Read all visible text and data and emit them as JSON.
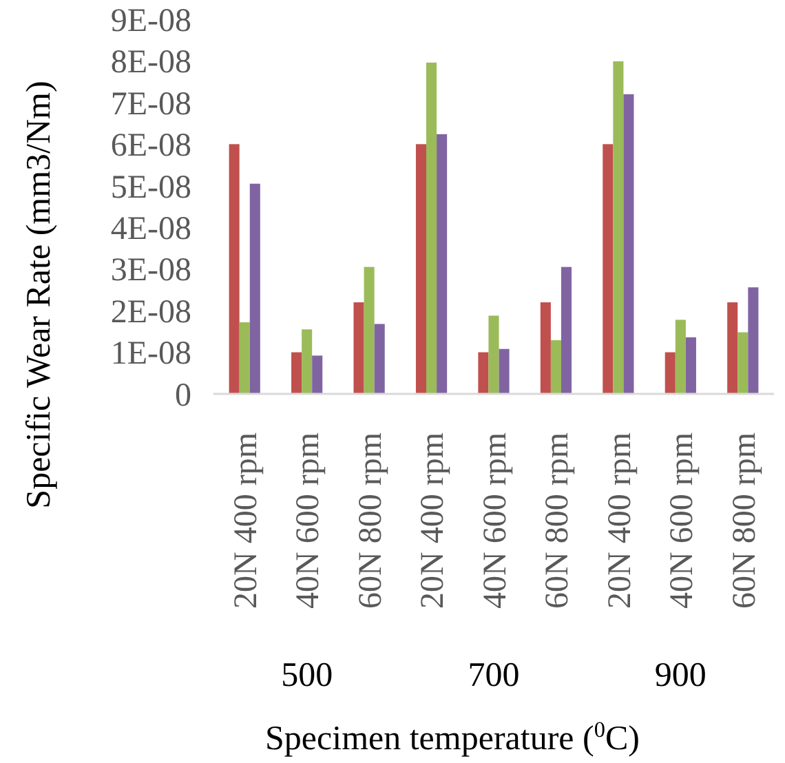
{
  "chart_data": {
    "type": "bar",
    "xlabel": "Specimen temperature ($^{0}$C)",
    "ylabel": "Specific Wear Rate (mm3/Nm)",
    "categories": [
      "20N 400 rpm",
      "40N 600 rpm",
      "60N 800 rpm",
      "20N 400 rpm",
      "40N 600 rpm",
      "60N 800 rpm",
      "20N 400 rpm",
      "40N 600 rpm",
      "60N 800 rpm"
    ],
    "series": [
      {
        "color": "#c0504d",
        "values": [
          6e-08,
          1e-08,
          2.2e-08,
          6e-08,
          1e-08,
          2.2e-08,
          6e-08,
          1e-08,
          2.2e-08
        ]
      },
      {
        "color": "#9bbb59",
        "values": [
          1.72e-08,
          1.55e-08,
          3.05e-08,
          7.96e-08,
          1.88e-08,
          1.29e-08,
          7.99e-08,
          1.78e-08,
          1.48e-08
        ]
      },
      {
        "color": "#8064a2",
        "values": [
          5.05e-08,
          9.2e-09,
          1.68e-08,
          6.24e-08,
          1.08e-08,
          3.05e-08,
          7.2e-08,
          1.36e-08,
          2.56e-08
        ]
      }
    ],
    "ylim": [
      0,
      9e-08
    ],
    "yticks": [
      0,
      {
        "value": 1e-08,
        "label": "1E-08"
      },
      {
        "value": 2e-08,
        "label": "2E-08"
      },
      {
        "value": 3e-08,
        "label": "3E-08"
      },
      {
        "value": 4e-08,
        "label": "4E-08"
      },
      {
        "value": 5e-08,
        "label": "5E-08"
      },
      {
        "value": 6e-08,
        "label": "6E-08"
      },
      {
        "value": 7e-08,
        "label": "7E-08"
      },
      {
        "value": 8e-08,
        "label": "8E-08"
      },
      {
        "value": 9e-08,
        "label": "9E-08"
      }
    ],
    "annotations": [
      "500",
      "700",
      "900"
    ],
    "grid": false
  }
}
